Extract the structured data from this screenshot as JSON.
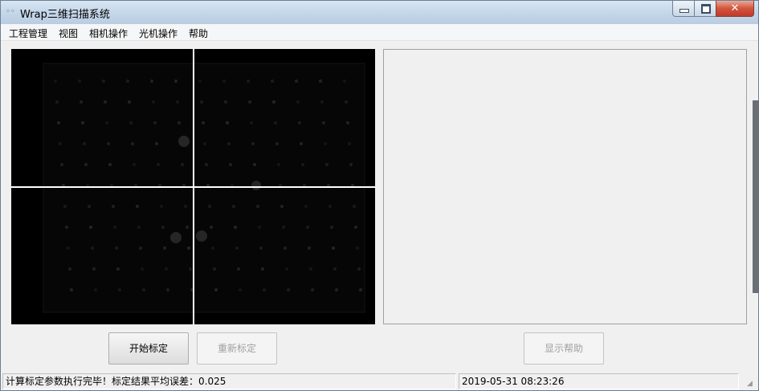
{
  "window": {
    "title": "Wrap三维扫描系统",
    "close_glyph": "✕"
  },
  "menu": [
    {
      "label": "工程管理"
    },
    {
      "label": "视图"
    },
    {
      "label": "相机操作"
    },
    {
      "label": "光机操作"
    },
    {
      "label": "帮助"
    }
  ],
  "buttons": {
    "start_calibration": "开始标定",
    "recalibrate": "重新标定",
    "show_help": "显示帮助"
  },
  "status": {
    "message": "计算标定参数执行完毕！标定结果平均误差：0.025",
    "datetime": "2019-05-31 08:23:26"
  },
  "icons": {
    "app": "app-icon",
    "minimize": "minimize-icon",
    "maximize": "maximize-icon",
    "close": "close-icon",
    "grip": "resize-grip-icon"
  }
}
